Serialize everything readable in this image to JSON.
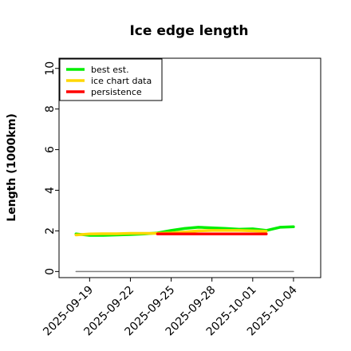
{
  "chart_data": {
    "type": "line",
    "title": "Ice edge length",
    "xlabel": "",
    "ylabel": "Length (1000km)",
    "ylim": [
      -0.3,
      10.5
    ],
    "xlim": [
      "2025-09-16T18:00",
      "2025-10-06"
    ],
    "yticks": [
      0,
      2,
      4,
      6,
      8,
      10
    ],
    "xticks": [
      "2025-09-19",
      "2025-09-22",
      "2025-09-25",
      "2025-09-28",
      "2025-10-01",
      "2025-10-04"
    ],
    "grid": false,
    "legend": {
      "placement": "top-left"
    },
    "series": [
      {
        "name": "best est.",
        "color": "#00ee00",
        "x": [
          "2025-09-18",
          "2025-09-19",
          "2025-09-20",
          "2025-09-21",
          "2025-09-22",
          "2025-09-23",
          "2025-09-24",
          "2025-09-25",
          "2025-09-26",
          "2025-09-27",
          "2025-09-28",
          "2025-09-29",
          "2025-09-30",
          "2025-10-01",
          "2025-10-02",
          "2025-10-03",
          "2025-10-04"
        ],
        "y": [
          1.85,
          1.78,
          1.78,
          1.8,
          1.82,
          1.85,
          1.9,
          2.02,
          2.12,
          2.18,
          2.15,
          2.12,
          2.08,
          2.1,
          2.02,
          2.18,
          2.2
        ]
      },
      {
        "name": "ice chart data",
        "color": "#ffd700",
        "x": [
          "2025-09-18",
          "2025-09-19",
          "2025-09-20",
          "2025-09-21",
          "2025-09-22",
          "2025-09-23",
          "2025-09-24",
          "2025-09-25",
          "2025-09-26",
          "2025-09-27",
          "2025-09-28",
          "2025-09-29",
          "2025-09-30",
          "2025-10-01",
          "2025-10-02"
        ],
        "y": [
          1.8,
          1.85,
          1.86,
          1.86,
          1.88,
          1.88,
          1.88,
          1.9,
          1.95,
          2.0,
          2.02,
          2.02,
          2.02,
          2.0,
          1.98
        ]
      },
      {
        "name": "persistence",
        "color": "#ff0000",
        "x": [
          "2025-09-24",
          "2025-10-02"
        ],
        "y": [
          1.85,
          1.85
        ]
      },
      {
        "name": "",
        "color": "#808080",
        "x": [
          "2025-09-18",
          "2025-10-04"
        ],
        "y": [
          0,
          0
        ]
      }
    ]
  }
}
